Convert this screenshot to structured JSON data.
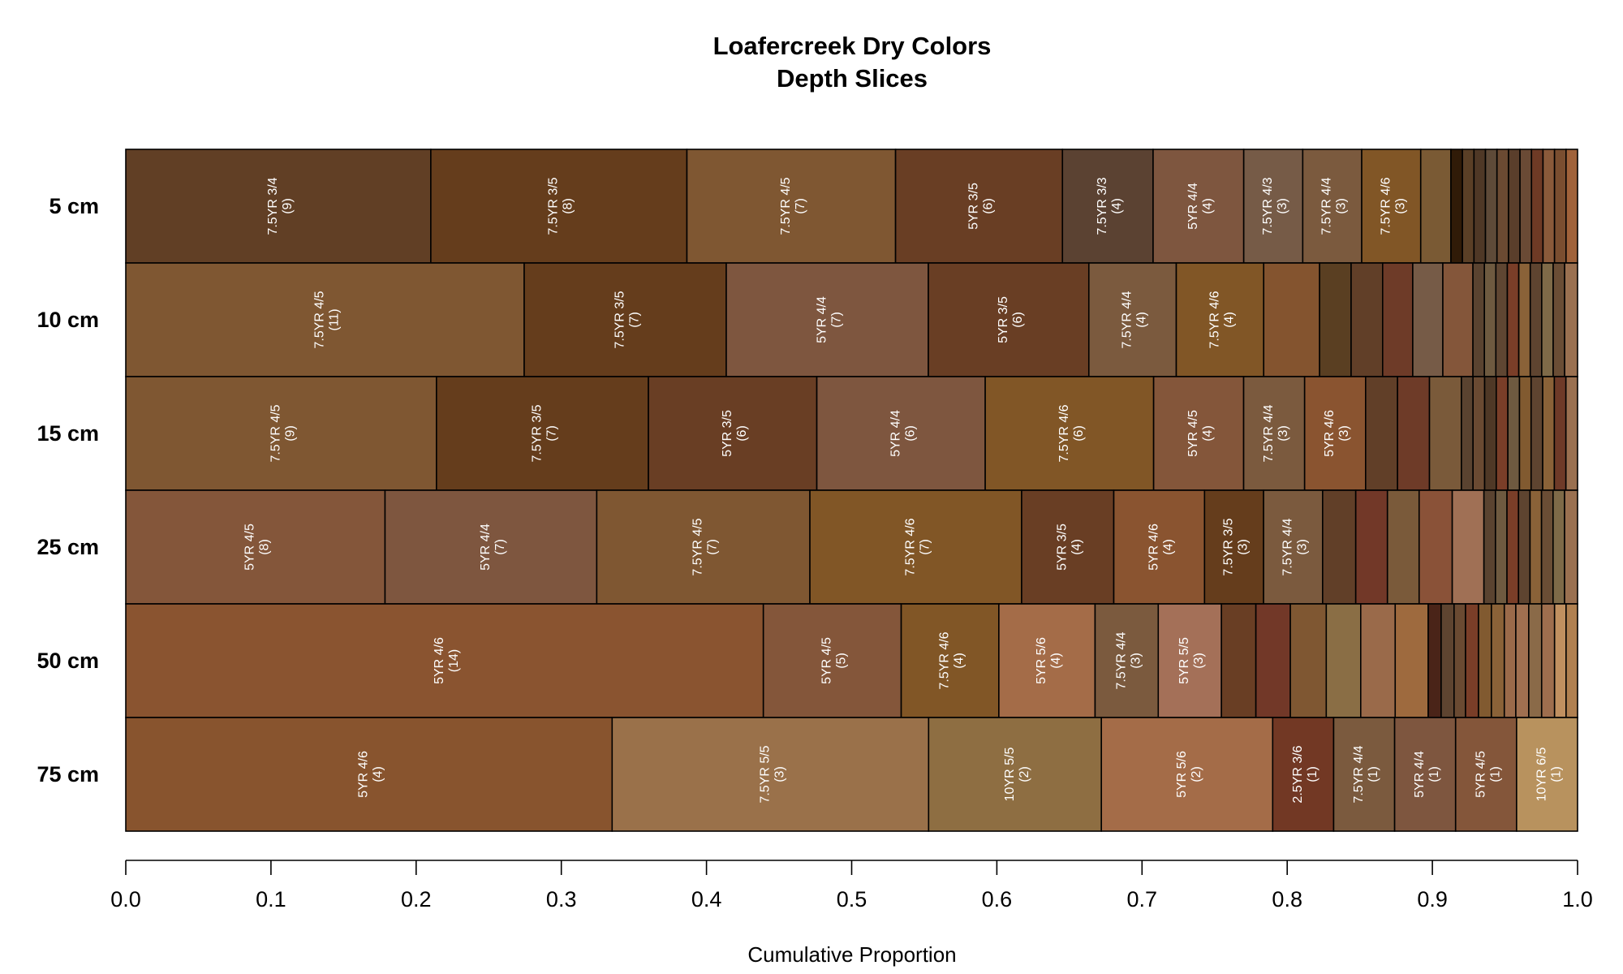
{
  "chart_data": {
    "type": "bar",
    "orientation": "horizontal-stacked",
    "title": "Loafercreek Dry Colors",
    "subtitle": "Depth Slices",
    "xlabel": "Cumulative Proportion",
    "xlim": [
      0,
      1
    ],
    "x_ticks": [
      "0.0",
      "0.1",
      "0.2",
      "0.3",
      "0.4",
      "0.5",
      "0.6",
      "0.7",
      "0.8",
      "0.9",
      "1.0"
    ],
    "grid": false,
    "legend": "none",
    "rows": [
      {
        "label": "5 cm",
        "segments": [
          {
            "name": "7.5YR 3/4",
            "count": "(9)",
            "value": 0.212,
            "color": "#613F25"
          },
          {
            "name": "7.5YR 3/5",
            "count": "(8)",
            "value": 0.178,
            "color": "#653D1C"
          },
          {
            "name": "7.5YR 4/5",
            "count": "(7)",
            "value": 0.145,
            "color": "#7F5732"
          },
          {
            "name": "5YR 3/5",
            "count": "(6)",
            "value": 0.116,
            "color": "#693E24"
          },
          {
            "name": "7.5YR 3/3",
            "count": "(4)",
            "value": 0.063,
            "color": "#5B4232"
          },
          {
            "name": "5YR 4/4",
            "count": "(4)",
            "value": 0.063,
            "color": "#7E563F"
          },
          {
            "name": "7.5YR 4/3",
            "count": "(3)",
            "value": 0.041,
            "color": "#765B47"
          },
          {
            "name": "7.5YR 4/4",
            "count": "(3)",
            "value": 0.041,
            "color": "#7B5A3E"
          },
          {
            "name": "7.5YR 4/6",
            "count": "(3)",
            "value": 0.041,
            "color": "#815626"
          },
          {
            "value": 0.021,
            "color": "#7A5A34"
          },
          {
            "value": 0.008,
            "color": "#301B08"
          },
          {
            "value": 0.008,
            "color": "#5A3F26"
          },
          {
            "value": 0.008,
            "color": "#4F3826"
          },
          {
            "value": 0.008,
            "color": "#5E4A38"
          },
          {
            "value": 0.008,
            "color": "#6B4A32"
          },
          {
            "value": 0.008,
            "color": "#5A3E2B"
          },
          {
            "value": 0.008,
            "color": "#6A4A35"
          },
          {
            "value": 0.008,
            "color": "#6E3A25"
          },
          {
            "value": 0.008,
            "color": "#8A5A3A"
          },
          {
            "value": 0.008,
            "color": "#7A4E30"
          },
          {
            "value": 0.008,
            "color": "#A0623A"
          }
        ]
      },
      {
        "label": "10 cm",
        "segments": [
          {
            "name": "7.5YR 4/5",
            "count": "(11)",
            "value": 0.278,
            "color": "#7F5732"
          },
          {
            "name": "7.5YR 3/5",
            "count": "(7)",
            "value": 0.141,
            "color": "#653D1C"
          },
          {
            "name": "5YR 4/4",
            "count": "(7)",
            "value": 0.141,
            "color": "#7E563F"
          },
          {
            "name": "5YR 3/5",
            "count": "(6)",
            "value": 0.112,
            "color": "#693E24"
          },
          {
            "name": "7.5YR 4/4",
            "count": "(4)",
            "value": 0.061,
            "color": "#7B5A3E"
          },
          {
            "name": "7.5YR 4/6",
            "count": "(4)",
            "value": 0.061,
            "color": "#815626"
          },
          {
            "value": 0.039,
            "color": "#84542F"
          },
          {
            "value": 0.022,
            "color": "#5A3F22"
          },
          {
            "value": 0.022,
            "color": "#613F28"
          },
          {
            "value": 0.021,
            "color": "#6E3B28"
          },
          {
            "value": 0.021,
            "color": "#765B47"
          },
          {
            "value": 0.021,
            "color": "#84563A"
          },
          {
            "value": 0.008,
            "color": "#5A4330"
          },
          {
            "value": 0.008,
            "color": "#6E5A40"
          },
          {
            "value": 0.008,
            "color": "#5F4632"
          },
          {
            "value": 0.008,
            "color": "#7A3E28"
          },
          {
            "value": 0.008,
            "color": "#8A6238"
          },
          {
            "value": 0.008,
            "color": "#5E4430"
          },
          {
            "value": 0.008,
            "color": "#7E6A48"
          },
          {
            "value": 0.008,
            "color": "#6A4D35"
          },
          {
            "value": 0.009,
            "color": "#9A7050"
          }
        ]
      },
      {
        "label": "15 cm",
        "segments": [
          {
            "name": "7.5YR 4/5",
            "count": "(9)",
            "value": 0.214,
            "color": "#7F5732"
          },
          {
            "name": "7.5YR 3/5",
            "count": "(7)",
            "value": 0.146,
            "color": "#653D1C"
          },
          {
            "name": "5YR 3/5",
            "count": "(6)",
            "value": 0.116,
            "color": "#693E24"
          },
          {
            "name": "5YR 4/4",
            "count": "(6)",
            "value": 0.116,
            "color": "#7E563F"
          },
          {
            "name": "7.5YR 4/6",
            "count": "(6)",
            "value": 0.116,
            "color": "#815626"
          },
          {
            "name": "5YR 4/5",
            "count": "(4)",
            "value": 0.062,
            "color": "#84563A"
          },
          {
            "name": "7.5YR 4/4",
            "count": "(3)",
            "value": 0.042,
            "color": "#7B5A3E"
          },
          {
            "name": "5YR 4/6",
            "count": "(3)",
            "value": 0.042,
            "color": "#8A5430"
          },
          {
            "value": 0.022,
            "color": "#613F28"
          },
          {
            "value": 0.022,
            "color": "#6E3B28"
          },
          {
            "value": 0.022,
            "color": "#7A5A3A"
          },
          {
            "value": 0.008,
            "color": "#5A4330"
          },
          {
            "value": 0.008,
            "color": "#6A4A32"
          },
          {
            "value": 0.008,
            "color": "#4F3826"
          },
          {
            "value": 0.008,
            "color": "#7A3E28"
          },
          {
            "value": 0.008,
            "color": "#6E5A40"
          },
          {
            "value": 0.008,
            "color": "#815A30"
          },
          {
            "value": 0.008,
            "color": "#5E4430"
          },
          {
            "value": 0.008,
            "color": "#8A6238"
          },
          {
            "value": 0.008,
            "color": "#6E3A28"
          },
          {
            "value": 0.008,
            "color": "#9A7050"
          }
        ]
      },
      {
        "label": "25 cm",
        "segments": [
          {
            "name": "5YR 4/5",
            "count": "(8)",
            "value": 0.18,
            "color": "#84563A"
          },
          {
            "name": "5YR 4/4",
            "count": "(7)",
            "value": 0.147,
            "color": "#7E563F"
          },
          {
            "name": "7.5YR 4/5",
            "count": "(7)",
            "value": 0.148,
            "color": "#7F5732"
          },
          {
            "name": "7.5YR 4/6",
            "count": "(7)",
            "value": 0.147,
            "color": "#815626"
          },
          {
            "name": "5YR 3/5",
            "count": "(4)",
            "value": 0.064,
            "color": "#693E24"
          },
          {
            "name": "5YR 4/6",
            "count": "(4)",
            "value": 0.063,
            "color": "#8A5430"
          },
          {
            "name": "7.5YR 3/5",
            "count": "(3)",
            "value": 0.041,
            "color": "#653D1C"
          },
          {
            "name": "7.5YR 4/4",
            "count": "(3)",
            "value": 0.041,
            "color": "#7B5A3E"
          },
          {
            "value": 0.023,
            "color": "#613F28"
          },
          {
            "value": 0.022,
            "color": "#723828"
          },
          {
            "value": 0.022,
            "color": "#7A5A3A"
          },
          {
            "value": 0.023,
            "color": "#8A5238"
          },
          {
            "value": 0.022,
            "color": "#A07055"
          },
          {
            "value": 0.008,
            "color": "#5A4330"
          },
          {
            "value": 0.008,
            "color": "#6E5A40"
          },
          {
            "value": 0.008,
            "color": "#7A3E28"
          },
          {
            "value": 0.008,
            "color": "#5E4430"
          },
          {
            "value": 0.008,
            "color": "#8A6238"
          },
          {
            "value": 0.008,
            "color": "#6A4D35"
          },
          {
            "value": 0.008,
            "color": "#7E6A48"
          },
          {
            "value": 0.009,
            "color": "#9A7050"
          }
        ]
      },
      {
        "label": "50 cm",
        "segments": [
          {
            "name": "5YR 4/6",
            "count": "(14)",
            "value": 0.444,
            "color": "#8A5430"
          },
          {
            "name": "5YR 4/5",
            "count": "(5)",
            "value": 0.096,
            "color": "#84563A"
          },
          {
            "name": "7.5YR 4/6",
            "count": "(4)",
            "value": 0.068,
            "color": "#815626"
          },
          {
            "name": "5YR 5/6",
            "count": "(4)",
            "value": 0.067,
            "color": "#A46C48"
          },
          {
            "name": "7.5YR 4/4",
            "count": "(3)",
            "value": 0.044,
            "color": "#7B5A3E"
          },
          {
            "name": "5YR 5/5",
            "count": "(3)",
            "value": 0.044,
            "color": "#A47058"
          },
          {
            "value": 0.024,
            "color": "#693E24"
          },
          {
            "value": 0.024,
            "color": "#723828"
          },
          {
            "value": 0.025,
            "color": "#7F5732"
          },
          {
            "value": 0.024,
            "color": "#8A6E45"
          },
          {
            "value": 0.024,
            "color": "#9A6A4A"
          },
          {
            "value": 0.023,
            "color": "#9E6A3E"
          },
          {
            "value": 0.009,
            "color": "#4A2418"
          },
          {
            "value": 0.009,
            "color": "#5E4430"
          },
          {
            "value": 0.008,
            "color": "#6A4A32"
          },
          {
            "value": 0.009,
            "color": "#7A3E28"
          },
          {
            "value": 0.009,
            "color": "#815A30"
          },
          {
            "value": 0.009,
            "color": "#8A6238"
          },
          {
            "value": 0.008,
            "color": "#9A6A4A"
          },
          {
            "value": 0.009,
            "color": "#A07050"
          },
          {
            "value": 0.009,
            "color": "#8A6A48"
          },
          {
            "value": 0.009,
            "color": "#9E6E4E"
          },
          {
            "value": 0.008,
            "color": "#C09060"
          },
          {
            "value": 0.008,
            "color": "#B08050"
          }
        ]
      },
      {
        "label": "75 cm",
        "segments": [
          {
            "name": "5YR 4/6",
            "count": "(4)",
            "value": 0.335,
            "color": "#88542E"
          },
          {
            "name": "7.5YR 5/5",
            "count": "(3)",
            "value": 0.218,
            "color": "#9A714A"
          },
          {
            "name": "10YR 5/5",
            "count": "(2)",
            "value": 0.119,
            "color": "#8E6E42"
          },
          {
            "name": "5YR 5/6",
            "count": "(2)",
            "value": 0.118,
            "color": "#A46C48"
          },
          {
            "name": "2.5YR 3/6",
            "count": "(1)",
            "value": 0.042,
            "color": "#723824"
          },
          {
            "name": "7.5YR 4/4",
            "count": "(1)",
            "value": 0.042,
            "color": "#7B5A3E"
          },
          {
            "name": "5YR 4/4",
            "count": "(1)",
            "value": 0.042,
            "color": "#7E563F"
          },
          {
            "name": "5YR 4/5",
            "count": "(1)",
            "value": 0.042,
            "color": "#84563A"
          },
          {
            "name": "10YR 6/5",
            "count": "(1)",
            "value": 0.042,
            "color": "#B8925E"
          }
        ]
      }
    ]
  }
}
